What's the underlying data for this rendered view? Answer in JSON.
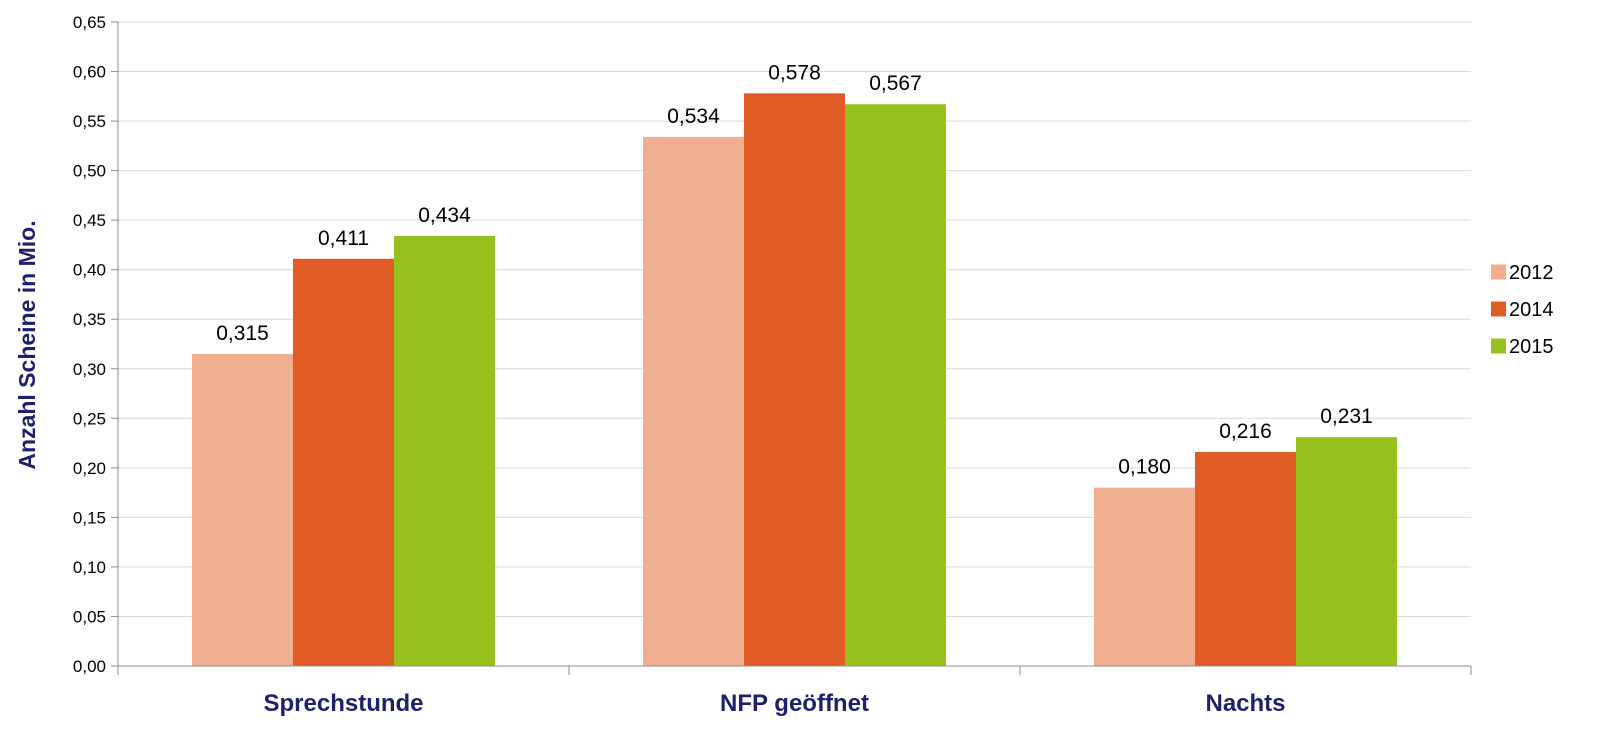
{
  "chart_data": {
    "type": "bar",
    "categories": [
      "Sprechstunde",
      "NFP geöffnet",
      "Nachts"
    ],
    "series": [
      {
        "name": "2012",
        "values": [
          0.315,
          0.534,
          0.18
        ],
        "labels": [
          "0,315",
          "0,534",
          "0,180"
        ],
        "color": "#f0ae90"
      },
      {
        "name": "2014",
        "values": [
          0.411,
          0.578,
          0.216
        ],
        "labels": [
          "0,411",
          "0,578",
          "0,216"
        ],
        "color": "#e05c24"
      },
      {
        "name": "2015",
        "values": [
          0.434,
          0.567,
          0.231
        ],
        "labels": [
          "0,434",
          "0,567",
          "0,231"
        ],
        "color": "#96c11f"
      }
    ],
    "ylabel": "Anzahl Scheine in Mio.",
    "xlabel": "",
    "ylim": [
      0,
      0.65
    ],
    "yticks": [
      "0,00",
      "0,05",
      "0,10",
      "0,15",
      "0,20",
      "0,25",
      "0,30",
      "0,35",
      "0,40",
      "0,45",
      "0,50",
      "0,55",
      "0,60",
      "0,65"
    ],
    "grid": true,
    "legend_position": "right",
    "colors": {
      "gridline": "#d9d9d9",
      "axis": "#8c8c8c",
      "category_text": "#1f1f6e"
    }
  }
}
